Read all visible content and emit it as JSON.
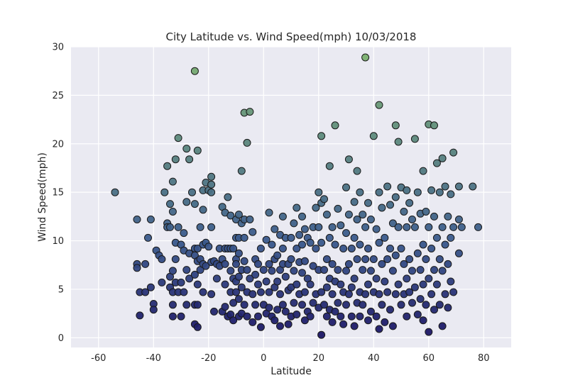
{
  "chart_data": {
    "type": "scatter",
    "title": "City Latitude vs. Wind Speed(mph) 10/03/2018",
    "xlabel": "Latitude",
    "ylabel": "Wind Speed(mph)",
    "xlim": [
      -70,
      90
    ],
    "ylim": [
      -1,
      30
    ],
    "xticks": [
      -60,
      -40,
      -20,
      0,
      20,
      40,
      60,
      80
    ],
    "yticks": [
      0,
      5,
      10,
      15,
      20,
      25,
      30
    ],
    "grid": true,
    "background": "#eaeaf2",
    "colormap": "value-based, navy (low wind) to green (high wind)",
    "point_color_low": "#1b1464",
    "point_color_mid": "#3a5a8c",
    "point_color_high": "#7ab06f",
    "points": [
      [
        -54,
        15.0
      ],
      [
        -46,
        12.2
      ],
      [
        -46,
        7.6
      ],
      [
        -46,
        7.2
      ],
      [
        -45,
        4.7
      ],
      [
        -45,
        2.3
      ],
      [
        -43,
        7.6
      ],
      [
        -43,
        4.7
      ],
      [
        -42,
        10.3
      ],
      [
        -41,
        12.2
      ],
      [
        -41,
        5.2
      ],
      [
        -40,
        3.5
      ],
      [
        -40,
        2.9
      ],
      [
        -39,
        9.0
      ],
      [
        -38,
        8.5
      ],
      [
        -37,
        8.1
      ],
      [
        -37,
        5.7
      ],
      [
        -36,
        15.0
      ],
      [
        -35,
        17.7
      ],
      [
        -35,
        11.8
      ],
      [
        -35,
        11.4
      ],
      [
        -34,
        13.8
      ],
      [
        -34,
        11.4
      ],
      [
        -34,
        6.3
      ],
      [
        -34,
        5.2
      ],
      [
        -33,
        16.1
      ],
      [
        -33,
        13.0
      ],
      [
        -33,
        6.9
      ],
      [
        -33,
        4.7
      ],
      [
        -33,
        3.4
      ],
      [
        -33,
        2.2
      ],
      [
        -32,
        18.4
      ],
      [
        -32,
        9.8
      ],
      [
        -32,
        8.1
      ],
      [
        -32,
        5.7
      ],
      [
        -31,
        20.6
      ],
      [
        -31,
        11.4
      ],
      [
        -31,
        4.7
      ],
      [
        -30,
        9.6
      ],
      [
        -30,
        5.7
      ],
      [
        -30,
        2.2
      ],
      [
        -29,
        10.8
      ],
      [
        -29,
        9.0
      ],
      [
        -29,
        4.7
      ],
      [
        -28,
        19.5
      ],
      [
        -28,
        14.0
      ],
      [
        -28,
        7.0
      ],
      [
        -28,
        3.4
      ],
      [
        -27,
        18.4
      ],
      [
        -27,
        8.7
      ],
      [
        -27,
        6.1
      ],
      [
        -26,
        15.0
      ],
      [
        -25,
        27.5
      ],
      [
        -25,
        13.8
      ],
      [
        -25,
        9.2
      ],
      [
        -25,
        8.5
      ],
      [
        -25,
        6.5
      ],
      [
        -25,
        3.4
      ],
      [
        -25,
        1.4
      ],
      [
        -24,
        19.3
      ],
      [
        -24,
        9.2
      ],
      [
        -24,
        7.9
      ],
      [
        -24,
        5.5
      ],
      [
        -24,
        3.4
      ],
      [
        -24,
        1.1
      ],
      [
        -23,
        11.4
      ],
      [
        -23,
        8.1
      ],
      [
        -23,
        7.0
      ],
      [
        -22,
        15.2
      ],
      [
        -22,
        13.2
      ],
      [
        -22,
        9.6
      ],
      [
        -22,
        7.6
      ],
      [
        -22,
        4.7
      ],
      [
        -21,
        16.0
      ],
      [
        -21,
        9.8
      ],
      [
        -21,
        7.4
      ],
      [
        -20,
        15.2
      ],
      [
        -20,
        9.4
      ],
      [
        -19,
        16.6
      ],
      [
        -19,
        15.8
      ],
      [
        -19,
        15.0
      ],
      [
        -19,
        11.4
      ],
      [
        -19,
        7.8
      ],
      [
        -19,
        4.5
      ],
      [
        -18,
        7.9
      ],
      [
        -18,
        2.7
      ],
      [
        -17,
        7.6
      ],
      [
        -17,
        6.1
      ],
      [
        -16,
        9.2
      ],
      [
        -16,
        7.4
      ],
      [
        -15,
        13.5
      ],
      [
        -15,
        8.1
      ],
      [
        -15,
        2.7
      ],
      [
        -14,
        12.9
      ],
      [
        -14,
        9.2
      ],
      [
        -14,
        7.6
      ],
      [
        -14,
        5.5
      ],
      [
        -14,
        3.2
      ],
      [
        -13,
        14.5
      ],
      [
        -13,
        9.2
      ],
      [
        -13,
        2.2
      ],
      [
        -12,
        12.6
      ],
      [
        -12,
        9.2
      ],
      [
        -12,
        6.9
      ],
      [
        -12,
        4.7
      ],
      [
        -12,
        2.4
      ],
      [
        -11,
        9.2
      ],
      [
        -11,
        6.1
      ],
      [
        -11,
        3.6
      ],
      [
        -11,
        1.8
      ],
      [
        -10,
        12.2
      ],
      [
        -10,
        10.3
      ],
      [
        -10,
        8.1
      ],
      [
        -10,
        7.6
      ],
      [
        -10,
        5.8
      ],
      [
        -10,
        4.7
      ],
      [
        -9,
        12.7
      ],
      [
        -9,
        10.3
      ],
      [
        -9,
        8.7
      ],
      [
        -9,
        6.3
      ],
      [
        -9,
        4.0
      ],
      [
        -9,
        2.2
      ],
      [
        -8,
        17.2
      ],
      [
        -8,
        11.8
      ],
      [
        -8,
        7.0
      ],
      [
        -8,
        5.2
      ],
      [
        -8,
        2.5
      ],
      [
        -7,
        23.2
      ],
      [
        -7,
        12.2
      ],
      [
        -7,
        10.3
      ],
      [
        -7,
        7.9
      ],
      [
        -7,
        3.4
      ],
      [
        -6,
        20.1
      ],
      [
        -6,
        7.0
      ],
      [
        -6,
        4.7
      ],
      [
        -6,
        2.2
      ],
      [
        -5,
        23.3
      ],
      [
        -5,
        12.2
      ],
      [
        -5,
        6.1
      ],
      [
        -4,
        10.9
      ],
      [
        -4,
        4.5
      ],
      [
        -4,
        1.6
      ],
      [
        -3,
        8.1
      ],
      [
        -3,
        6.5
      ],
      [
        -3,
        3.4
      ],
      [
        -2,
        7.6
      ],
      [
        -2,
        5.5
      ],
      [
        -2,
        2.2
      ],
      [
        -1,
        9.2
      ],
      [
        -1,
        4.7
      ],
      [
        -1,
        1.1
      ],
      [
        0,
        7.0
      ],
      [
        0,
        3.4
      ],
      [
        1,
        10.1
      ],
      [
        1,
        5.8
      ],
      [
        1,
        2.5
      ],
      [
        2,
        12.9
      ],
      [
        2,
        7.6
      ],
      [
        2,
        4.7
      ],
      [
        2,
        3.1
      ],
      [
        3,
        9.6
      ],
      [
        3,
        6.9
      ],
      [
        3,
        2.2
      ],
      [
        4,
        11.2
      ],
      [
        4,
        8.1
      ],
      [
        4,
        5.2
      ],
      [
        4,
        1.8
      ],
      [
        5,
        8.5
      ],
      [
        5,
        5.8
      ],
      [
        5,
        2.9
      ],
      [
        6,
        10.6
      ],
      [
        6,
        7.0
      ],
      [
        6,
        4.5
      ],
      [
        6,
        1.2
      ],
      [
        7,
        12.5
      ],
      [
        7,
        9.2
      ],
      [
        7,
        7.6
      ],
      [
        7,
        3.4
      ],
      [
        8,
        10.3
      ],
      [
        8,
        6.3
      ],
      [
        8,
        2.7
      ],
      [
        9,
        7.6
      ],
      [
        9,
        4.9
      ],
      [
        9,
        1.4
      ],
      [
        10,
        10.3
      ],
      [
        10,
        8.1
      ],
      [
        10,
        5.2
      ],
      [
        10,
        2.2
      ],
      [
        11,
        11.8
      ],
      [
        11,
        6.9
      ],
      [
        11,
        3.6
      ],
      [
        12,
        13.4
      ],
      [
        12,
        9.2
      ],
      [
        12,
        5.5
      ],
      [
        12,
        2.4
      ],
      [
        13,
        10.6
      ],
      [
        13,
        7.8
      ],
      [
        13,
        4.5
      ],
      [
        14,
        12.5
      ],
      [
        14,
        9.6
      ],
      [
        14,
        6.7
      ],
      [
        14,
        3.4
      ],
      [
        15,
        11.2
      ],
      [
        15,
        7.9
      ],
      [
        15,
        4.7
      ],
      [
        15,
        1.8
      ],
      [
        16,
        10.3
      ],
      [
        16,
        6.1
      ],
      [
        16,
        2.7
      ],
      [
        17,
        9.8
      ],
      [
        17,
        5.5
      ],
      [
        17,
        2.2
      ],
      [
        18,
        11.4
      ],
      [
        18,
        7.4
      ],
      [
        18,
        3.6
      ],
      [
        19,
        13.4
      ],
      [
        19,
        9.2
      ],
      [
        19,
        4.5
      ],
      [
        20,
        15.0
      ],
      [
        20,
        11.4
      ],
      [
        20,
        7.0
      ],
      [
        20,
        3.1
      ],
      [
        21,
        20.8
      ],
      [
        21,
        13.9
      ],
      [
        21,
        9.8
      ],
      [
        21,
        4.7
      ],
      [
        21,
        0.3
      ],
      [
        22,
        14.3
      ],
      [
        22,
        7.0
      ],
      [
        22,
        3.4
      ],
      [
        23,
        12.7
      ],
      [
        23,
        8.1
      ],
      [
        23,
        5.2
      ],
      [
        23,
        2.2
      ],
      [
        24,
        17.7
      ],
      [
        24,
        10.3
      ],
      [
        24,
        6.1
      ],
      [
        24,
        2.9
      ],
      [
        25,
        11.4
      ],
      [
        25,
        7.6
      ],
      [
        25,
        4.5
      ],
      [
        25,
        1.6
      ],
      [
        26,
        21.9
      ],
      [
        26,
        9.6
      ],
      [
        26,
        5.8
      ],
      [
        26,
        2.7
      ],
      [
        27,
        13.3
      ],
      [
        27,
        7.0
      ],
      [
        27,
        3.6
      ],
      [
        28,
        11.6
      ],
      [
        28,
        5.5
      ],
      [
        28,
        2.2
      ],
      [
        29,
        9.2
      ],
      [
        29,
        4.7
      ],
      [
        29,
        1.4
      ],
      [
        30,
        15.5
      ],
      [
        30,
        10.8
      ],
      [
        30,
        6.9
      ],
      [
        30,
        3.4
      ],
      [
        31,
        18.4
      ],
      [
        31,
        12.7
      ],
      [
        31,
        7.6
      ],
      [
        31,
        4.5
      ],
      [
        32,
        9.2
      ],
      [
        32,
        5.2
      ],
      [
        32,
        2.2
      ],
      [
        33,
        14.0
      ],
      [
        33,
        10.3
      ],
      [
        33,
        6.1
      ],
      [
        33,
        1.2
      ],
      [
        34,
        17.2
      ],
      [
        34,
        12.2
      ],
      [
        34,
        8.1
      ],
      [
        34,
        3.6
      ],
      [
        35,
        15.0
      ],
      [
        35,
        9.6
      ],
      [
        35,
        4.7
      ],
      [
        35,
        2.2
      ],
      [
        36,
        12.7
      ],
      [
        36,
        7.0
      ],
      [
        36,
        3.4
      ],
      [
        37,
        28.9
      ],
      [
        37,
        11.4
      ],
      [
        37,
        8.1
      ],
      [
        37,
        4.5
      ],
      [
        38,
        13.9
      ],
      [
        38,
        9.2
      ],
      [
        38,
        5.5
      ],
      [
        38,
        1.8
      ],
      [
        39,
        12.2
      ],
      [
        39,
        6.9
      ],
      [
        39,
        2.7
      ],
      [
        40,
        20.8
      ],
      [
        40,
        8.1
      ],
      [
        40,
        4.7
      ],
      [
        41,
        11.2
      ],
      [
        41,
        6.1
      ],
      [
        41,
        2.2
      ],
      [
        42,
        24.0
      ],
      [
        42,
        15.0
      ],
      [
        42,
        9.8
      ],
      [
        42,
        4.5
      ],
      [
        42,
        0.9
      ],
      [
        43,
        13.4
      ],
      [
        43,
        7.6
      ],
      [
        43,
        3.4
      ],
      [
        44,
        10.3
      ],
      [
        44,
        5.8
      ],
      [
        44,
        1.6
      ],
      [
        45,
        15.6
      ],
      [
        45,
        8.1
      ],
      [
        45,
        4.7
      ],
      [
        46,
        13.7
      ],
      [
        46,
        9.2
      ],
      [
        46,
        2.9
      ],
      [
        47,
        11.8
      ],
      [
        47,
        6.9
      ],
      [
        47,
        1.2
      ],
      [
        48,
        21.9
      ],
      [
        48,
        14.5
      ],
      [
        48,
        8.5
      ],
      [
        48,
        4.5
      ],
      [
        49,
        20.2
      ],
      [
        49,
        11.4
      ],
      [
        49,
        5.5
      ],
      [
        50,
        15.5
      ],
      [
        50,
        9.2
      ],
      [
        50,
        3.4
      ],
      [
        51,
        13.0
      ],
      [
        51,
        7.6
      ],
      [
        51,
        4.5
      ],
      [
        52,
        15.2
      ],
      [
        52,
        11.4
      ],
      [
        52,
        6.1
      ],
      [
        52,
        2.2
      ],
      [
        53,
        13.9
      ],
      [
        53,
        8.1
      ],
      [
        53,
        4.7
      ],
      [
        54,
        12.2
      ],
      [
        54,
        6.9
      ],
      [
        54,
        3.6
      ],
      [
        55,
        20.5
      ],
      [
        55,
        11.4
      ],
      [
        55,
        5.2
      ],
      [
        56,
        15.0
      ],
      [
        56,
        8.7
      ],
      [
        56,
        2.4
      ],
      [
        57,
        12.8
      ],
      [
        57,
        7.0
      ],
      [
        57,
        4.0
      ],
      [
        58,
        17.2
      ],
      [
        58,
        9.6
      ],
      [
        58,
        5.5
      ],
      [
        58,
        1.8
      ],
      [
        59,
        13.0
      ],
      [
        59,
        8.1
      ],
      [
        59,
        3.4
      ],
      [
        60,
        22.0
      ],
      [
        60,
        11.4
      ],
      [
        60,
        6.1
      ],
      [
        60,
        0.6
      ],
      [
        61,
        15.2
      ],
      [
        61,
        9.2
      ],
      [
        61,
        4.5
      ],
      [
        62,
        21.9
      ],
      [
        62,
        12.5
      ],
      [
        62,
        7.0
      ],
      [
        62,
        2.9
      ],
      [
        63,
        18.0
      ],
      [
        63,
        10.3
      ],
      [
        63,
        5.5
      ],
      [
        64,
        15.0
      ],
      [
        64,
        8.1
      ],
      [
        64,
        3.4
      ],
      [
        65,
        18.5
      ],
      [
        65,
        11.4
      ],
      [
        65,
        6.9
      ],
      [
        65,
        1.2
      ],
      [
        66,
        15.6
      ],
      [
        66,
        9.6
      ],
      [
        66,
        4.5
      ],
      [
        67,
        12.5
      ],
      [
        67,
        7.6
      ],
      [
        67,
        3.1
      ],
      [
        68,
        14.8
      ],
      [
        68,
        10.3
      ],
      [
        68,
        5.8
      ],
      [
        69,
        19.1
      ],
      [
        69,
        11.4
      ],
      [
        69,
        4.7
      ],
      [
        71,
        15.6
      ],
      [
        71,
        12.2
      ],
      [
        71,
        8.7
      ],
      [
        72,
        11.4
      ],
      [
        76,
        15.6
      ],
      [
        78,
        11.4
      ]
    ]
  }
}
